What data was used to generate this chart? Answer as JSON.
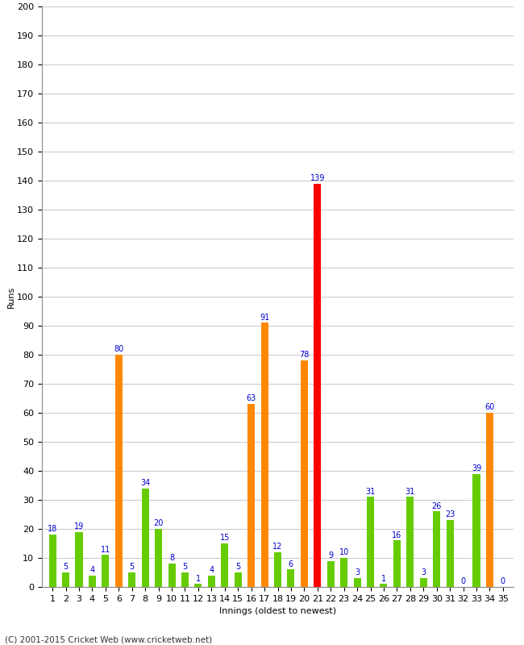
{
  "title": "",
  "xlabel": "Innings (oldest to newest)",
  "ylabel": "Runs",
  "footer": "(C) 2001-2015 Cricket Web (www.cricketweb.net)",
  "ylim": [
    0,
    200
  ],
  "yticks": [
    0,
    10,
    20,
    30,
    40,
    50,
    60,
    70,
    80,
    90,
    100,
    110,
    120,
    130,
    140,
    150,
    160,
    170,
    180,
    190,
    200
  ],
  "innings": [
    1,
    2,
    3,
    4,
    5,
    6,
    7,
    8,
    9,
    10,
    11,
    12,
    13,
    14,
    15,
    16,
    17,
    18,
    19,
    20,
    21,
    22,
    23,
    24,
    25,
    26,
    27,
    28,
    29,
    30,
    31,
    32,
    33,
    34,
    35
  ],
  "values": [
    18,
    5,
    19,
    4,
    11,
    80,
    5,
    34,
    20,
    8,
    5,
    1,
    4,
    15,
    5,
    63,
    91,
    12,
    6,
    78,
    139,
    9,
    10,
    3,
    31,
    1,
    16,
    31,
    3,
    26,
    23,
    0,
    39,
    60,
    0
  ],
  "colors": [
    "#66cc00",
    "#66cc00",
    "#66cc00",
    "#66cc00",
    "#66cc00",
    "#ff8800",
    "#66cc00",
    "#66cc00",
    "#66cc00",
    "#66cc00",
    "#66cc00",
    "#66cc00",
    "#66cc00",
    "#66cc00",
    "#66cc00",
    "#ff8800",
    "#ff8800",
    "#66cc00",
    "#66cc00",
    "#ff8800",
    "#ff0000",
    "#66cc00",
    "#66cc00",
    "#66cc00",
    "#66cc00",
    "#66cc00",
    "#66cc00",
    "#66cc00",
    "#66cc00",
    "#66cc00",
    "#66cc00",
    "#66cc00",
    "#66cc00",
    "#ff8800",
    "#66cc00"
  ],
  "bg_color": "#ffffff",
  "grid_color": "#cccccc",
  "label_color": "#0000cc",
  "axis_fontsize": 8,
  "label_fontsize": 7,
  "bar_width": 0.55
}
